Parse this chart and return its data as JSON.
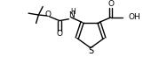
{
  "bg_color": "#ffffff",
  "line_color": "#000000",
  "lw": 1.0,
  "fs": 6.5,
  "figsize": [
    1.7,
    0.65
  ],
  "dpi": 100,
  "xlim": [
    0,
    170
  ],
  "ylim": [
    0,
    65
  ]
}
